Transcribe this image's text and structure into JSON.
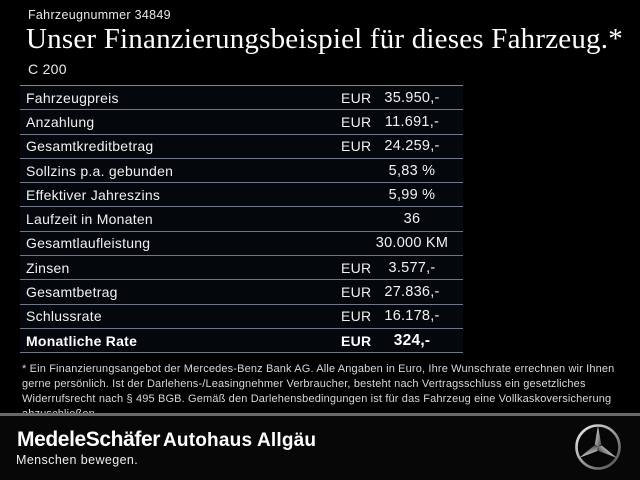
{
  "header": {
    "vehicle_number": "Fahrzeugnummer 34849",
    "title": "Unser Finanzierungsbeispiel für dieses Fahrzeug.*",
    "model": "C 200"
  },
  "table": {
    "rows": [
      {
        "label": "Fahrzeugpreis",
        "currency": "EUR",
        "value": "35.950,-",
        "bold": false
      },
      {
        "label": "Anzahlung",
        "currency": "EUR",
        "value": "11.691,-",
        "bold": false
      },
      {
        "label": "Gesamtkreditbetrag",
        "currency": "EUR",
        "value": "24.259,-",
        "bold": false
      },
      {
        "label": "Sollzins p.a. gebunden",
        "currency": "",
        "value": "5,83 %",
        "bold": false
      },
      {
        "label": "Effektiver Jahreszins",
        "currency": "",
        "value": "5,99 %",
        "bold": false
      },
      {
        "label": "Laufzeit in Monaten",
        "currency": "",
        "value": "36",
        "bold": false
      },
      {
        "label": "Gesamtlaufleistung",
        "currency": "",
        "value": "30.000 KM",
        "bold": false
      },
      {
        "label": "Zinsen",
        "currency": "EUR",
        "value": "3.577,-",
        "bold": false
      },
      {
        "label": "Gesamtbetrag",
        "currency": "EUR",
        "value": "27.836,-",
        "bold": false
      },
      {
        "label": "Schlussrate",
        "currency": "EUR",
        "value": "16.178,-",
        "bold": false
      },
      {
        "label": "Monatliche Rate",
        "currency": "EUR",
        "value": "324,-",
        "bold": true
      }
    ]
  },
  "footnote": "* Ein Finanzierungsangebot der Mercedes-Benz Bank AG. Alle Angaben in Euro, Ihre Wunschrate errechnen wir Ihnen gerne persönlich. Ist der Darlehens-/Leasingnehmer Verbraucher, besteht nach Vertragsschluss ein gesetzliches Widerrufsrecht nach § 495 BGB. Gemäß den Darlehensbedingungen ist für das Fahrzeug eine Vollkaskoversicherung abzuschließen.",
  "footer": {
    "dealer_logo": "MedeleSchäfer",
    "dealer_tagline": "Menschen bewegen.",
    "dealer_secondary": "Autohaus Allgäu",
    "brand_icon": "mercedes-benz-star"
  },
  "colors": {
    "background": "#000000",
    "table_divider": "#6f7886",
    "footer_divider": "#696969",
    "text_primary": "#f1f1f1",
    "text_secondary": "#d8d8d8"
  }
}
